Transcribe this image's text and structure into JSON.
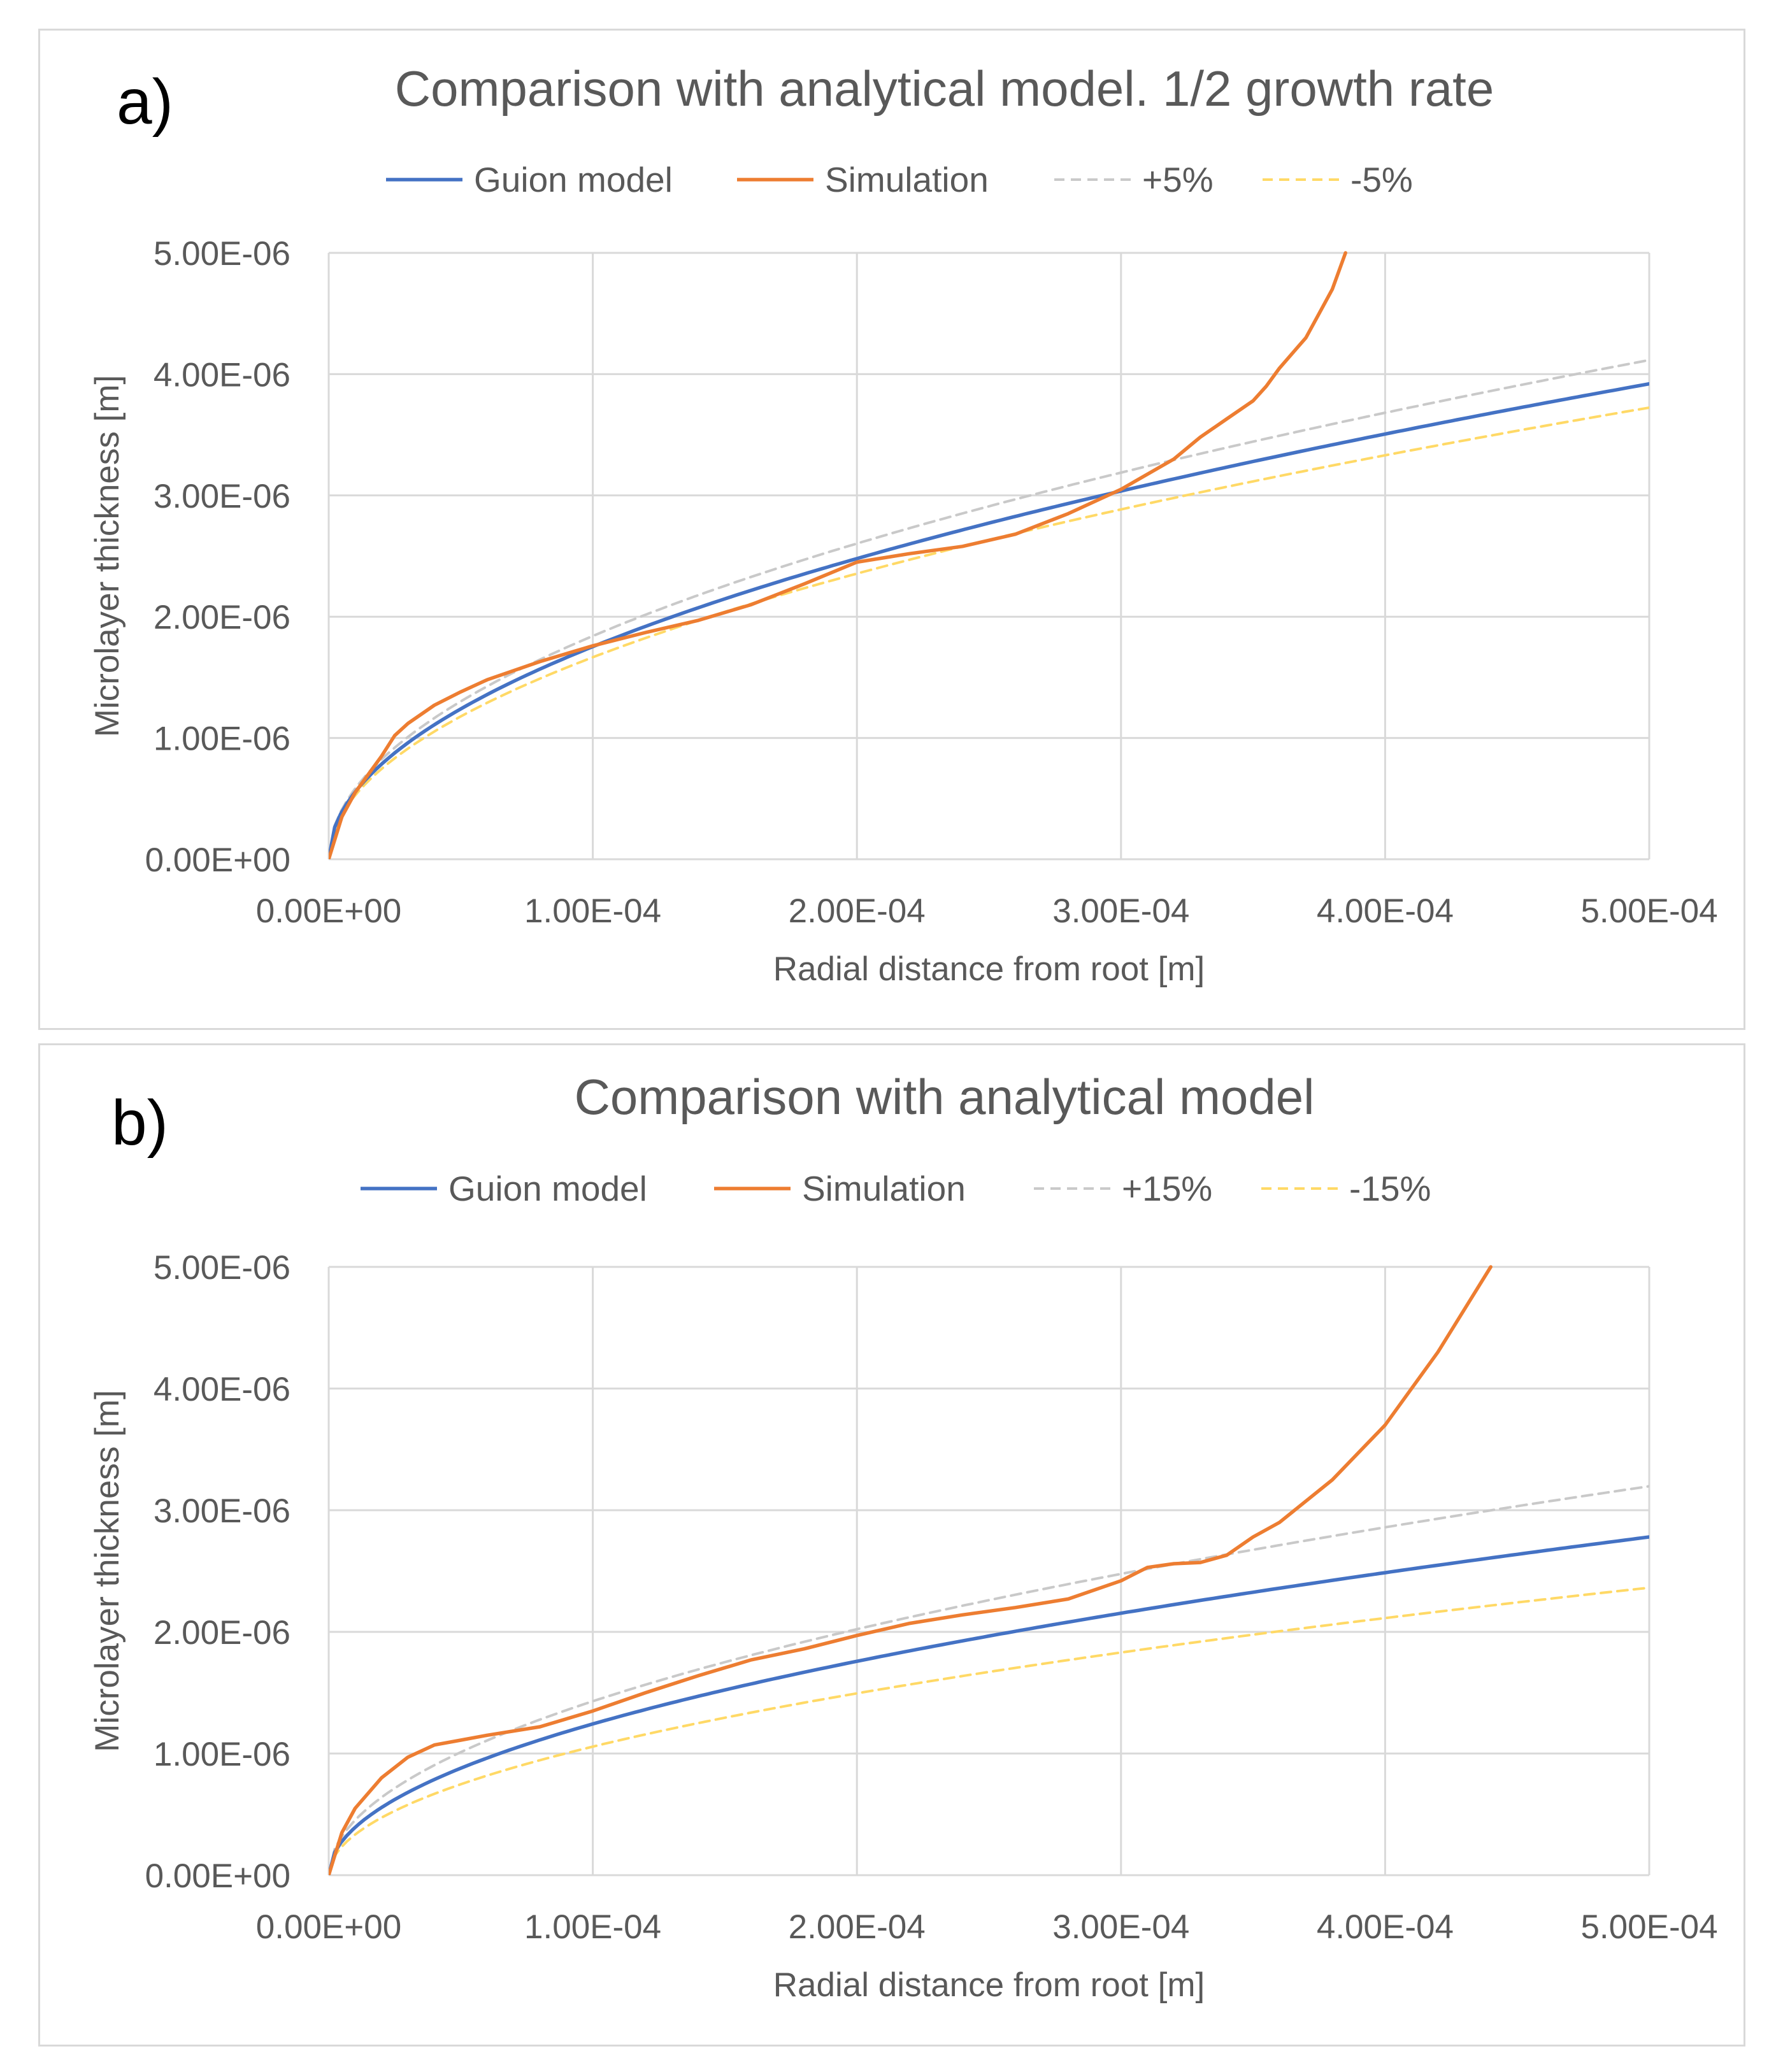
{
  "chart_data": [
    {
      "panel_label": "a)",
      "type": "line",
      "title": "Comparison with analytical model. 1/2 growth rate",
      "xlabel": "Radial distance from root [m]",
      "ylabel": "Microlayer thickness [m]",
      "xlim": [
        0,
        0.0005
      ],
      "ylim": [
        0,
        5e-06
      ],
      "x_ticks": [
        "0.00E+00",
        "1.00E-04",
        "2.00E-04",
        "3.00E-04",
        "4.00E-04",
        "5.00E-04"
      ],
      "y_ticks": [
        "0.00E+00",
        "1.00E-06",
        "2.00E-06",
        "3.00E-06",
        "4.00E-06",
        "5.00E-06"
      ],
      "grid": true,
      "legend_position": "top",
      "series": [
        {
          "name": "Guion model",
          "color": "#4472c4",
          "dash": "solid",
          "fn": "power",
          "coef": 3.92e-06,
          "exp": 0.5
        },
        {
          "name": "Simulation",
          "color": "#ed7d31",
          "dash": "solid",
          "x": [
            0,
            5e-06,
            1e-05,
            2e-05,
            2.5e-05,
            3e-05,
            4e-05,
            5e-05,
            6e-05,
            8e-05,
            0.0001,
            0.00012,
            0.00014,
            0.00016,
            0.00018,
            0.0002,
            0.00022,
            0.00024,
            0.00026,
            0.00028,
            0.0003,
            0.00032,
            0.00033,
            0.00034,
            0.00035,
            0.000355,
            0.00036,
            0.00037,
            0.000375,
            0.00038,
            0.000385
          ],
          "y": [
            0,
            3.5e-07,
            5.5e-07,
            8.5e-07,
            1.02e-06,
            1.12e-06,
            1.27e-06,
            1.38e-06,
            1.48e-06,
            1.63e-06,
            1.76e-06,
            1.87e-06,
            1.97e-06,
            2.1e-06,
            2.27e-06,
            2.45e-06,
            2.52e-06,
            2.58e-06,
            2.68e-06,
            2.85e-06,
            3.05e-06,
            3.3e-06,
            3.48e-06,
            3.63e-06,
            3.78e-06,
            3.9e-06,
            4.05e-06,
            4.3e-06,
            4.5e-06,
            4.7e-06,
            5e-06
          ]
        },
        {
          "name": "+5%",
          "color": "#c9c9c9",
          "dash": "dashed",
          "fn": "power",
          "coef": 4.116e-06,
          "exp": 0.5
        },
        {
          "name": "-5%",
          "color": "#ffd966",
          "dash": "dashed",
          "fn": "power",
          "coef": 3.724e-06,
          "exp": 0.5
        }
      ]
    },
    {
      "panel_label": "b)",
      "type": "line",
      "title": "Comparison with analytical model",
      "xlabel": "Radial distance from root [m]",
      "ylabel": "Microlayer thickness [m]",
      "xlim": [
        0,
        0.0005
      ],
      "ylim": [
        0,
        5e-06
      ],
      "x_ticks": [
        "0.00E+00",
        "1.00E-04",
        "2.00E-04",
        "3.00E-04",
        "4.00E-04",
        "5.00E-04"
      ],
      "y_ticks": [
        "0.00E+00",
        "1.00E-06",
        "2.00E-06",
        "3.00E-06",
        "4.00E-06",
        "5.00E-06"
      ],
      "grid": true,
      "legend_position": "top",
      "series": [
        {
          "name": "Guion model",
          "color": "#4472c4",
          "dash": "solid",
          "fn": "power",
          "coef": 2.78e-06,
          "exp": 0.5
        },
        {
          "name": "Simulation",
          "color": "#ed7d31",
          "dash": "solid",
          "x": [
            0,
            5e-06,
            1e-05,
            2e-05,
            3e-05,
            4e-05,
            5e-05,
            6e-05,
            8e-05,
            0.0001,
            0.00012,
            0.00014,
            0.00016,
            0.00018,
            0.0002,
            0.00022,
            0.00024,
            0.00026,
            0.00028,
            0.0003,
            0.00031,
            0.00032,
            0.00033,
            0.00034,
            0.00035,
            0.00036,
            0.00038,
            0.0004,
            0.00042,
            0.00044
          ],
          "y": [
            0,
            3.5e-07,
            5.5e-07,
            8e-07,
            9.7e-07,
            1.07e-06,
            1.11e-06,
            1.15e-06,
            1.22e-06,
            1.35e-06,
            1.5e-06,
            1.64e-06,
            1.77e-06,
            1.86e-06,
            1.97e-06,
            2.07e-06,
            2.14e-06,
            2.2e-06,
            2.27e-06,
            2.42e-06,
            2.53e-06,
            2.56e-06,
            2.57e-06,
            2.63e-06,
            2.78e-06,
            2.9e-06,
            3.25e-06,
            3.7e-06,
            4.3e-06,
            5e-06
          ]
        },
        {
          "name": "+15%",
          "color": "#c9c9c9",
          "dash": "dashed",
          "fn": "power",
          "coef": 3.197e-06,
          "exp": 0.5
        },
        {
          "name": "-15%",
          "color": "#ffd966",
          "dash": "dashed",
          "fn": "power",
          "coef": 2.363e-06,
          "exp": 0.5
        }
      ]
    }
  ]
}
